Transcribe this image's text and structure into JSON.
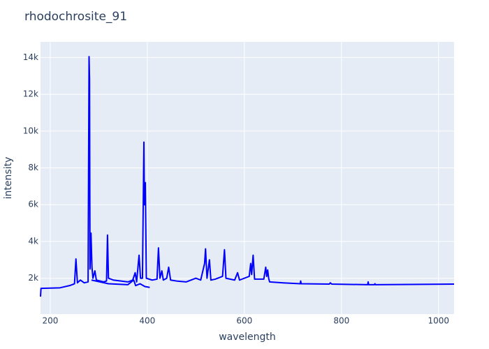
{
  "chart_data": {
    "type": "line",
    "title": "rhodochrosite_91",
    "x_label": "wavelength",
    "y_label": "intensity",
    "xlim": [
      180,
      1032
    ],
    "ylim": [
      50,
      14850
    ],
    "xticks": [
      200,
      400,
      600,
      800,
      1000
    ],
    "yticks": [
      {
        "value": 2000,
        "label": "2k"
      },
      {
        "value": 4000,
        "label": "4k"
      },
      {
        "value": 6000,
        "label": "6k"
      },
      {
        "value": 8000,
        "label": "8k"
      },
      {
        "value": 10000,
        "label": "10k"
      },
      {
        "value": 12000,
        "label": "12k"
      },
      {
        "value": 14000,
        "label": "14k"
      }
    ],
    "grid": true,
    "series": [
      {
        "color": "#0000ff",
        "x": [
          180,
          181,
          220,
          240,
          250,
          253,
          256,
          262,
          270,
          278,
          280,
          281,
          282,
          284,
          286,
          288,
          292,
          295,
          310,
          316,
          318,
          320,
          330,
          360,
          370,
          375,
          378,
          383,
          386,
          390,
          393,
          394,
          396,
          398,
          410,
          420,
          423,
          426,
          430,
          433,
          440,
          444,
          448,
          460,
          480,
          500,
          510,
          518,
          520,
          523,
          528,
          531,
          540,
          555,
          559,
          562,
          580,
          586,
          590,
          610,
          613,
          615,
          618,
          621,
          640,
          644,
          646,
          648,
          650,
          652,
          680,
          715,
          716,
          717,
          775,
          777,
          780,
          854,
          855,
          856,
          868,
          869,
          870,
          1032,
          null,
          285,
          320,
          360,
          372,
          376,
          385,
          395,
          405
        ],
        "values": [
          1000,
          1450,
          1480,
          1600,
          1700,
          3050,
          1750,
          1900,
          1750,
          1800,
          14050,
          12800,
          2500,
          4450,
          2600,
          2000,
          2400,
          1900,
          1800,
          1850,
          4350,
          2000,
          1900,
          1800,
          1900,
          2300,
          1800,
          3250,
          2000,
          2000,
          9400,
          6000,
          7200,
          2000,
          1900,
          1950,
          3650,
          2000,
          2400,
          1900,
          2000,
          2600,
          1900,
          1850,
          1800,
          2000,
          1900,
          2800,
          3600,
          2000,
          3000,
          1900,
          1950,
          2100,
          3550,
          2000,
          1900,
          2300,
          1900,
          2100,
          2800,
          2200,
          3250,
          1950,
          1950,
          2600,
          2100,
          2450,
          2000,
          1800,
          1750,
          1700,
          1850,
          1700,
          1680,
          1750,
          1680,
          1650,
          1800,
          1650,
          1650,
          1700,
          1650,
          1680,
          null,
          1900,
          1700,
          1650,
          1900,
          1600,
          1700,
          1550,
          1500
        ]
      }
    ]
  }
}
